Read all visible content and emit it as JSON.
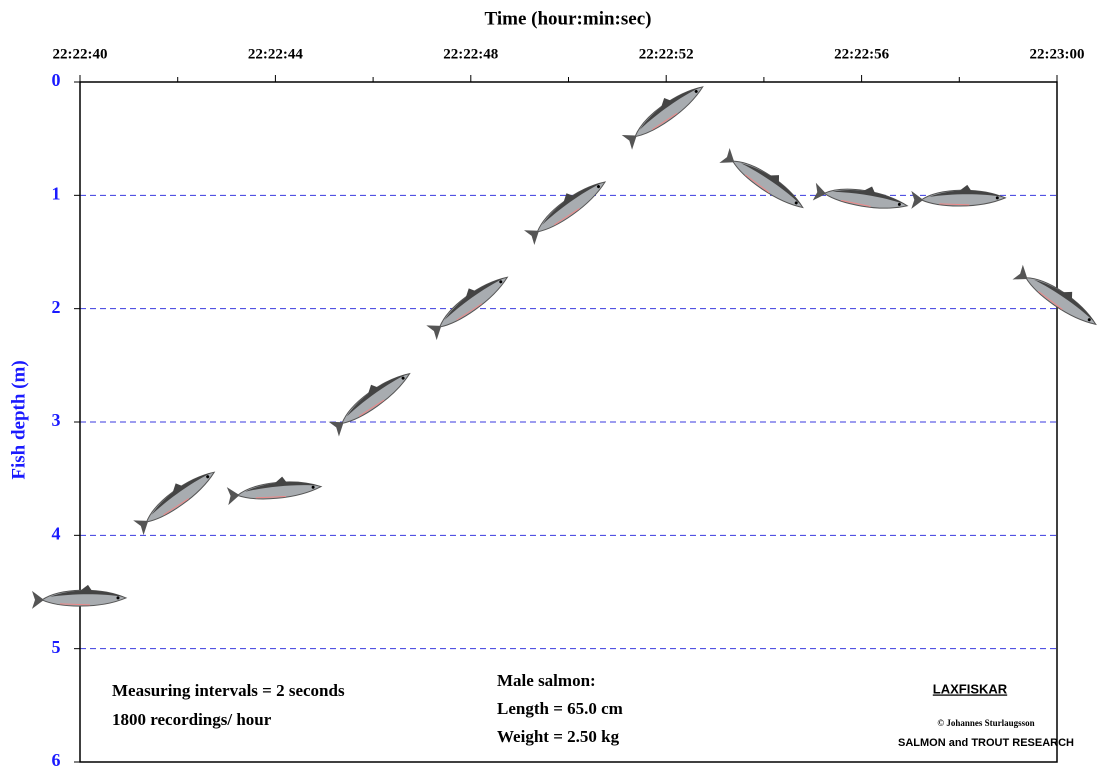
{
  "chart_data": {
    "type": "fish-track",
    "x_label": "Time (hour:min:sec)",
    "y_label": "Fish depth (m)",
    "x": [
      "22:22:40",
      "22:22:42",
      "22:22:44",
      "22:22:46",
      "22:22:48",
      "22:22:50",
      "22:22:52",
      "22:22:54",
      "22:22:56",
      "22:22:58",
      "22:23:00"
    ],
    "series": [
      {
        "values": [
          4.57,
          3.69,
          3.62,
          2.82,
          1.97,
          1.13,
          0.29,
          0.89,
          1.04,
          1.04,
          1.92
        ],
        "color": "#a8acb0"
      }
    ],
    "xlim": [
      "22:22:40",
      "22:23:00"
    ],
    "xticks": [
      "22:22:40",
      "22:22:44",
      "22:22:48",
      "22:22:52",
      "22:22:56",
      "22:23:00"
    ],
    "xminorticks": [
      "22:22:42",
      "22:22:46",
      "22:22:50",
      "22:22:54",
      "22:22:58"
    ],
    "ylim": [
      0,
      6
    ],
    "y_inverted": true,
    "yticks": [
      0,
      1,
      2,
      3,
      4,
      5,
      6
    ],
    "grid": true,
    "grid_color": "#3a3adf",
    "annotations": {
      "interval": "Measuring intervals = 2 seconds",
      "recordings": "1800 recordings/ hour",
      "fish": "Male salmon:",
      "length": "Length =  65.0 cm",
      "weight": "Weight =  2.50 kg",
      "logo": "LAXFISKAR",
      "copyright": "© Johannes Sturlaugsson",
      "org": "SALMON and TROUT RESEARCH"
    }
  }
}
